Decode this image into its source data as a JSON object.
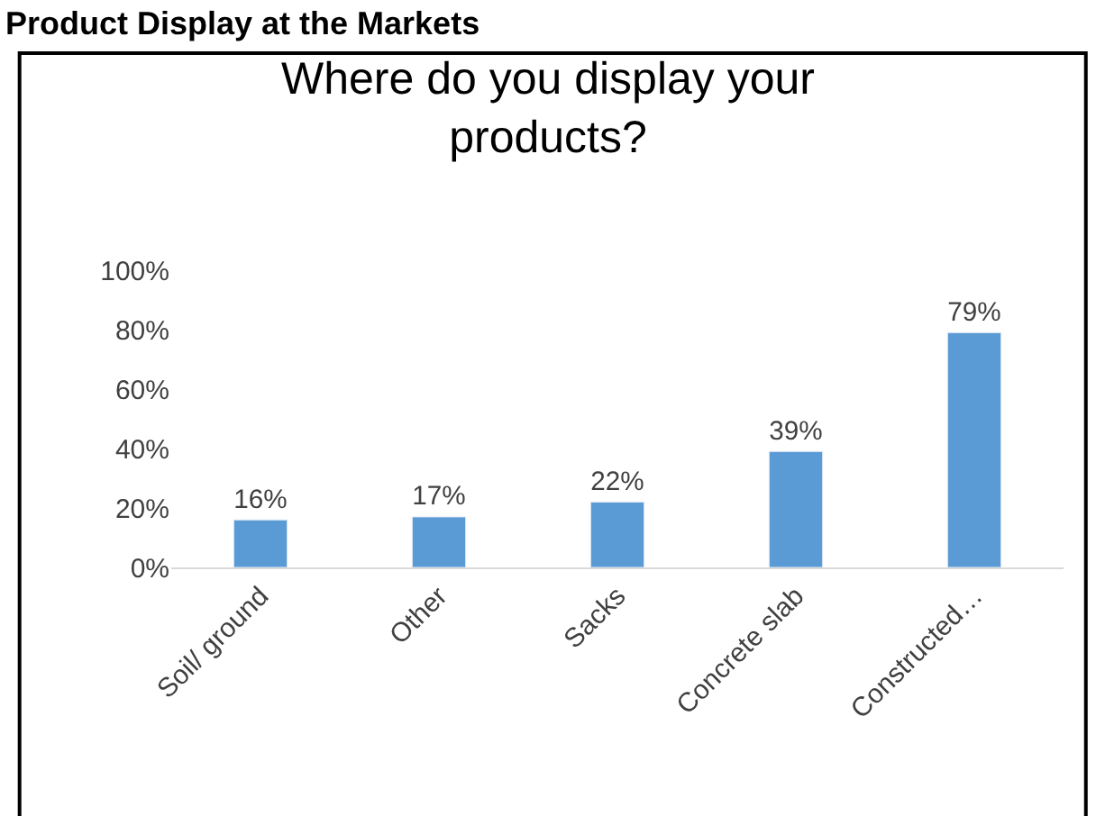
{
  "chart_data": {
    "type": "bar",
    "title": "Where do you display your products?",
    "annotations": [
      "Product Display at the Markets"
    ],
    "categories": [
      "Soil/ ground",
      "Other",
      "Sacks",
      "Concrete slab",
      "Constructed…"
    ],
    "values": [
      16,
      17,
      22,
      39,
      79
    ],
    "value_labels": [
      "16%",
      "17%",
      "22%",
      "39%",
      "79%"
    ],
    "color": "#5b9bd5",
    "ylim": [
      0,
      100
    ],
    "yticks": [
      {
        "value": 0,
        "label": "0%"
      },
      {
        "value": 20,
        "label": "20%"
      },
      {
        "value": 40,
        "label": "40%"
      },
      {
        "value": 60,
        "label": "60%"
      },
      {
        "value": 80,
        "label": "80%"
      },
      {
        "value": 100,
        "label": "100%"
      }
    ],
    "legend": false
  }
}
